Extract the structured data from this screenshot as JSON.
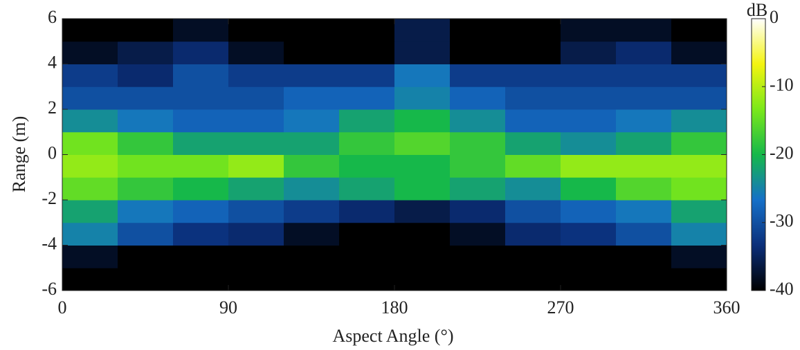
{
  "chart_data": {
    "type": "heatmap",
    "x_label": "Aspect Angle (°)",
    "y_label": "Range (m)",
    "colorbar_label": "dB",
    "xlim": [
      0,
      360
    ],
    "xticks": [
      0,
      90,
      180,
      270,
      360
    ],
    "ylim": [
      -6,
      6
    ],
    "yticks": [
      -6,
      -4,
      -2,
      0,
      2,
      4,
      6
    ],
    "clim": [
      -40,
      0
    ],
    "cticks": [
      0,
      -10,
      -20,
      -30,
      -40
    ],
    "colormap": [
      "#000000",
      "#0b2f7a",
      "#1570c8",
      "#16b84a",
      "#7be81a",
      "#f4f410",
      "#ffffff"
    ],
    "xbins": [
      0,
      30,
      60,
      90,
      120,
      150,
      180,
      210,
      240,
      270,
      300,
      330,
      360
    ],
    "ybins": [
      -6,
      -5,
      -4,
      -3,
      -2,
      -1,
      0,
      1,
      2,
      3,
      4,
      5,
      6
    ],
    "z": [
      [
        -40,
        -40,
        -40,
        -40,
        -40,
        -40,
        -40,
        -40,
        -40,
        -40,
        -40,
        -40
      ],
      [
        -38,
        -40,
        -40,
        -40,
        -40,
        -40,
        -40,
        -40,
        -40,
        -40,
        -40,
        -38
      ],
      [
        -25,
        -30,
        -33,
        -34,
        -38,
        -40,
        -40,
        -38,
        -34,
        -33,
        -30,
        -25
      ],
      [
        -22,
        -26,
        -28,
        -30,
        -32,
        -34,
        -36,
        -34,
        -30,
        -28,
        -26,
        -22
      ],
      [
        -15,
        -18,
        -20,
        -22,
        -24,
        -22,
        -20,
        -22,
        -24,
        -20,
        -16,
        -14
      ],
      [
        -12,
        -14,
        -14,
        -12,
        -18,
        -20,
        -20,
        -18,
        -15,
        -12,
        -12,
        -12
      ],
      [
        -14,
        -18,
        -22,
        -22,
        -22,
        -18,
        -16,
        -18,
        -22,
        -24,
        -22,
        -18
      ],
      [
        -24,
        -26,
        -28,
        -28,
        -26,
        -22,
        -20,
        -24,
        -28,
        -28,
        -26,
        -24
      ],
      [
        -30,
        -30,
        -30,
        -30,
        -28,
        -28,
        -25,
        -28,
        -30,
        -30,
        -30,
        -30
      ],
      [
        -32,
        -34,
        -30,
        -32,
        -32,
        -32,
        -26,
        -32,
        -32,
        -32,
        -32,
        -32
      ],
      [
        -38,
        -36,
        -34,
        -38,
        -40,
        -40,
        -36,
        -40,
        -40,
        -36,
        -34,
        -38
      ],
      [
        -40,
        -40,
        -38,
        -40,
        -40,
        -40,
        -36,
        -40,
        -40,
        -38,
        -38,
        -40
      ]
    ]
  }
}
